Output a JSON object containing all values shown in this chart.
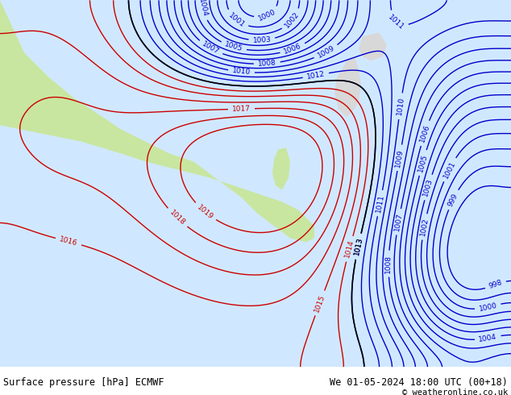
{
  "title_left": "Surface pressure [hPa] ECMWF",
  "title_right": "We 01-05-2024 18:00 UTC (00+18)",
  "copyright": "© weatheronline.co.uk",
  "figsize": [
    6.34,
    4.9
  ],
  "dpi": 100,
  "bg_color": "#d0e8ff",
  "land_color_green": "#c8e6a0",
  "land_color_gray": "#d8d8d8",
  "contour_color_blue": "#0000cc",
  "contour_color_red": "#cc0000",
  "contour_color_black": "#000000",
  "text_color": "#000000",
  "font_size_label": 8,
  "font_size_title": 8.5,
  "font_size_copyright": 7.5
}
